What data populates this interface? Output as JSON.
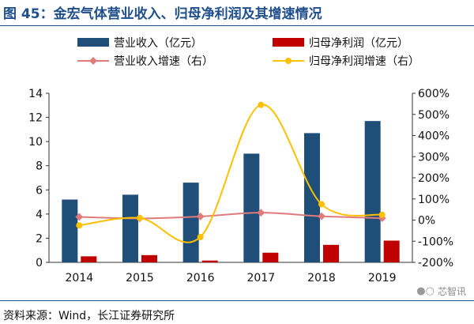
{
  "figure": {
    "title": "图 45：金宏气体营业收入、归母净利润及其增速情况",
    "source": "资料来源：Wind，长江证券研究所",
    "watermark": "芯智讯",
    "watermark_icon": "wechat-icon"
  },
  "colors": {
    "revenue": "#1f4e79",
    "profit": "#c00000",
    "revenue_growth": "#e07b7b",
    "profit_growth": "#ffc000",
    "title": "#1f4e8c"
  },
  "chart_data": {
    "type": "bar",
    "categories": [
      "2014",
      "2015",
      "2016",
      "2017",
      "2018",
      "2019"
    ],
    "series": [
      {
        "name": "营业收入（亿元）",
        "type": "bar",
        "axis": "left",
        "values": [
          5.2,
          5.6,
          6.6,
          9.0,
          10.7,
          11.7
        ]
      },
      {
        "name": "归母净利润（亿元）",
        "type": "bar",
        "axis": "left",
        "values": [
          0.5,
          0.6,
          0.15,
          0.8,
          1.45,
          1.8
        ]
      },
      {
        "name": "营业收入增速（右）",
        "type": "line",
        "axis": "right",
        "values": [
          15,
          8,
          17,
          35,
          18,
          9
        ]
      },
      {
        "name": "归母净利润增速（右）",
        "type": "line",
        "axis": "right",
        "values": [
          -25,
          10,
          -80,
          545,
          75,
          25
        ]
      }
    ],
    "y_left": {
      "min": 0,
      "max": 14,
      "ticks": [
        0,
        2,
        4,
        6,
        8,
        10,
        12,
        14
      ]
    },
    "y_right": {
      "min": -200,
      "max": 600,
      "ticks": [
        "-200%",
        "-100%",
        "0%",
        "100%",
        "200%",
        "300%",
        "400%",
        "500%",
        "600%"
      ]
    },
    "legend_position": "top",
    "grid": false
  }
}
